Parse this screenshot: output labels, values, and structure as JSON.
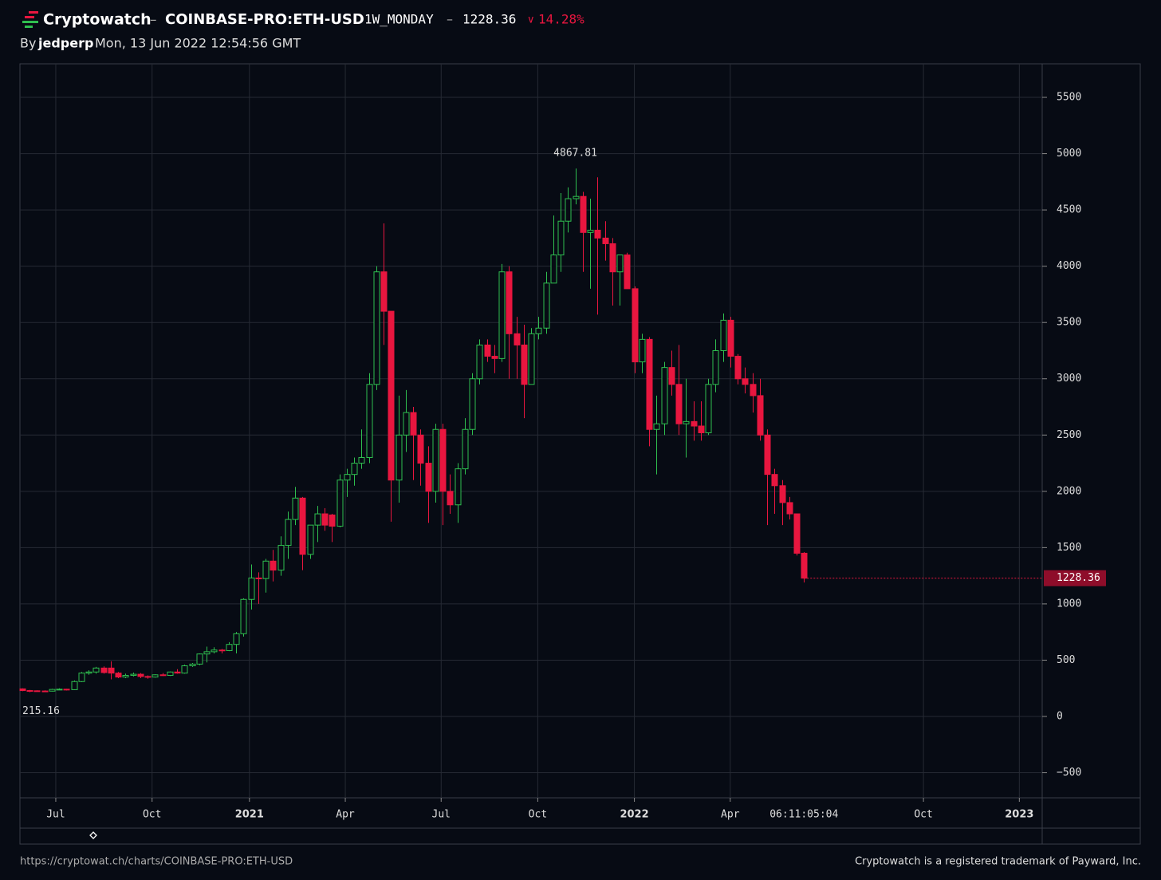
{
  "header": {
    "brand": "Cryptowatch",
    "sep1": "–",
    "market": "COINBASE-PRO:ETH-USD",
    "period": "1W_MONDAY",
    "sep2": "–",
    "change_arrow": "∨",
    "change": "14.28%",
    "by": "By",
    "author": "jedperp",
    "timestamp": "Mon, 13 Jun 2022 12:54:56 GMT"
  },
  "footer": {
    "url": "https://cryptowat.ch/charts/COINBASE-PRO:ETH-USD",
    "trademark": "Cryptowatch is a registered trademark of Payward, Inc."
  },
  "chart_data": {
    "type": "candlestick",
    "up_color": "#2fbf4f",
    "down_color": "#e8163f",
    "grid": true,
    "countdown": "06:11:05:04",
    "ylim": [
      -723,
      5798
    ],
    "yticks": [
      {
        "value": -500,
        "label": "−500"
      },
      0,
      500,
      1000,
      1500,
      2000,
      2500,
      3000,
      3500,
      4000,
      4500,
      5000,
      5500
    ],
    "xlim": [
      -0.32,
      138.3
    ],
    "xticks": [
      {
        "value": 4.54,
        "label": "Jul"
      },
      {
        "value": 17.6,
        "label": "Oct"
      },
      {
        "value": 30.8,
        "label": "2021"
      },
      {
        "value": 43.8,
        "label": "Apr"
      },
      {
        "value": 56.8,
        "label": "Jul"
      },
      {
        "value": 69.9,
        "label": "Oct"
      },
      {
        "value": 83.0,
        "label": "2022"
      },
      {
        "value": 96.0,
        "label": "Apr"
      },
      {
        "value": 122.2,
        "label": "Oct"
      },
      {
        "value": 135.2,
        "label": "2023"
      }
    ],
    "candles": [
      [
        245,
        250,
        225,
        230
      ],
      [
        230,
        236,
        215.16,
        228
      ],
      [
        228,
        232,
        220,
        226
      ],
      [
        226,
        232,
        218,
        225
      ],
      [
        225,
        245,
        222,
        240
      ],
      [
        240,
        250,
        235,
        242
      ],
      [
        242,
        245,
        230,
        238
      ],
      [
        238,
        320,
        235,
        310
      ],
      [
        310,
        395,
        305,
        385
      ],
      [
        385,
        410,
        370,
        395
      ],
      [
        395,
        440,
        380,
        430
      ],
      [
        430,
        445,
        380,
        390
      ],
      [
        430,
        490,
        330,
        385
      ],
      [
        385,
        395,
        340,
        350
      ],
      [
        350,
        380,
        340,
        365
      ],
      [
        365,
        390,
        355,
        375
      ],
      [
        375,
        385,
        340,
        355
      ],
      [
        355,
        365,
        335,
        350
      ],
      [
        350,
        375,
        345,
        370
      ],
      [
        370,
        385,
        360,
        365
      ],
      [
        365,
        400,
        360,
        395
      ],
      [
        395,
        420,
        380,
        385
      ],
      [
        385,
        460,
        380,
        450
      ],
      [
        450,
        475,
        440,
        465
      ],
      [
        465,
        560,
        455,
        555
      ],
      [
        555,
        620,
        480,
        575
      ],
      [
        575,
        615,
        560,
        590
      ],
      [
        590,
        600,
        560,
        585
      ],
      [
        585,
        660,
        580,
        640
      ],
      [
        640,
        750,
        560,
        735
      ],
      [
        735,
        1050,
        710,
        1040
      ],
      [
        1040,
        1350,
        950,
        1230
      ],
      [
        1230,
        1280,
        1000,
        1225
      ],
      [
        1225,
        1400,
        1100,
        1380
      ],
      [
        1380,
        1480,
        1200,
        1300
      ],
      [
        1300,
        1600,
        1250,
        1520
      ],
      [
        1520,
        1820,
        1400,
        1750
      ],
      [
        1750,
        2040,
        1700,
        1940
      ],
      [
        1940,
        1950,
        1300,
        1440
      ],
      [
        1440,
        1700,
        1400,
        1700
      ],
      [
        1700,
        1870,
        1550,
        1800
      ],
      [
        1800,
        1850,
        1650,
        1700
      ],
      [
        1790,
        1800,
        1550,
        1690
      ],
      [
        1690,
        2150,
        1680,
        2100
      ],
      [
        2100,
        2200,
        1950,
        2150
      ],
      [
        2150,
        2300,
        2050,
        2250
      ],
      [
        2250,
        2550,
        2200,
        2300
      ],
      [
        2300,
        3050,
        2250,
        2950
      ],
      [
        2950,
        4000,
        2900,
        3950
      ],
      [
        3950,
        4380,
        3300,
        3600
      ],
      [
        3600,
        3600,
        1730,
        2100
      ],
      [
        2100,
        2850,
        1900,
        2500
      ],
      [
        2500,
        2900,
        2350,
        2700
      ],
      [
        2700,
        2750,
        2100,
        2500
      ],
      [
        2500,
        2550,
        2050,
        2250
      ],
      [
        2250,
        2400,
        1720,
        2000
      ],
      [
        2000,
        2600,
        1900,
        2550
      ],
      [
        2550,
        2600,
        1700,
        2000
      ],
      [
        2000,
        2150,
        1800,
        1880
      ],
      [
        1880,
        2250,
        1720,
        2200
      ],
      [
        2200,
        2650,
        2150,
        2550
      ],
      [
        2550,
        3050,
        2500,
        3000
      ],
      [
        3000,
        3350,
        2950,
        3300
      ],
      [
        3300,
        3350,
        3150,
        3200
      ],
      [
        3200,
        3300,
        3050,
        3180
      ],
      [
        3180,
        4020,
        3150,
        3950
      ],
      [
        3950,
        4000,
        3000,
        3400
      ],
      [
        3400,
        3550,
        3000,
        3300
      ],
      [
        3300,
        3480,
        2650,
        2950
      ],
      [
        2950,
        3450,
        2950,
        3400
      ],
      [
        3400,
        3550,
        3350,
        3450
      ],
      [
        3450,
        3950,
        3400,
        3850
      ],
      [
        3850,
        4450,
        3850,
        4100
      ],
      [
        4100,
        4650,
        3950,
        4400
      ],
      [
        4400,
        4700,
        4300,
        4600
      ],
      [
        4600,
        4867.81,
        4550,
        4620
      ],
      [
        4620,
        4660,
        3950,
        4300
      ],
      [
        4300,
        4600,
        3800,
        4320
      ],
      [
        4320,
        4790,
        3570,
        4250
      ],
      [
        4250,
        4400,
        4050,
        4200
      ],
      [
        4200,
        4250,
        3650,
        3950
      ],
      [
        3950,
        4100,
        3650,
        4100
      ],
      [
        4100,
        4120,
        3800,
        3800
      ],
      [
        3800,
        3820,
        3050,
        3150
      ],
      [
        3150,
        3400,
        3050,
        3350
      ],
      [
        3350,
        3370,
        2400,
        2550
      ],
      [
        2550,
        2850,
        2150,
        2600
      ],
      [
        2600,
        3150,
        2500,
        3100
      ],
      [
        3100,
        3250,
        2850,
        2950
      ],
      [
        2950,
        3300,
        2500,
        2600
      ],
      [
        2600,
        3000,
        2300,
        2620
      ],
      [
        2620,
        2800,
        2450,
        2580
      ],
      [
        2580,
        2800,
        2450,
        2520
      ],
      [
        2520,
        3000,
        2500,
        2950
      ],
      [
        2950,
        3350,
        2880,
        3250
      ],
      [
        3250,
        3580,
        3150,
        3520
      ],
      [
        3520,
        3550,
        3100,
        3200
      ],
      [
        3200,
        3220,
        2950,
        3000
      ],
      [
        3000,
        3100,
        2870,
        2950
      ],
      [
        2950,
        3050,
        2700,
        2850
      ],
      [
        2850,
        3000,
        2450,
        2500
      ],
      [
        2500,
        2550,
        1700,
        2150
      ],
      [
        2150,
        2200,
        1800,
        2050
      ],
      [
        2050,
        2100,
        1700,
        1900
      ],
      [
        1900,
        1950,
        1750,
        1800
      ],
      [
        1800,
        1800,
        1430,
        1450
      ],
      [
        1450,
        1460,
        1190,
        1228.36
      ]
    ]
  }
}
